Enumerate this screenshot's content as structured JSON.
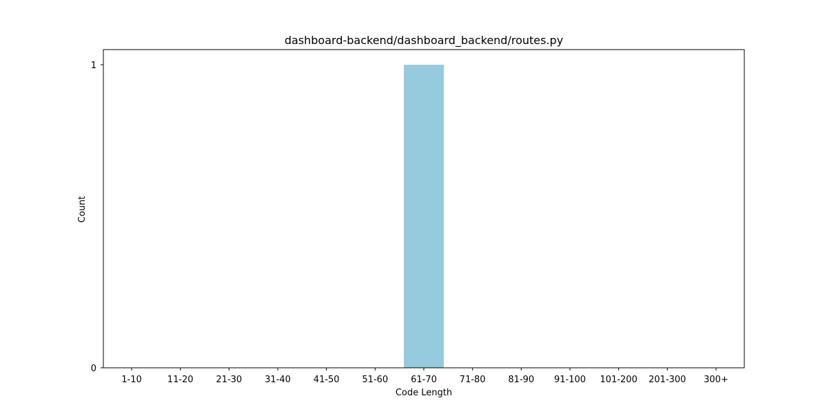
{
  "chart_data": {
    "type": "bar",
    "title": "dashboard-backend/dashboard_backend/routes.py",
    "xlabel": "Code Length",
    "ylabel": "Count",
    "categories": [
      "1-10",
      "11-20",
      "21-30",
      "31-40",
      "41-50",
      "51-60",
      "61-70",
      "71-80",
      "81-90",
      "91-100",
      "101-200",
      "201-300",
      "300+"
    ],
    "values": [
      0,
      0,
      0,
      0,
      0,
      0,
      1,
      0,
      0,
      0,
      0,
      0,
      0
    ],
    "yticks": [
      "0",
      "1"
    ],
    "ylim": [
      0,
      1.05
    ],
    "bar_color": "#96cadd",
    "grid": false,
    "legend": false
  }
}
